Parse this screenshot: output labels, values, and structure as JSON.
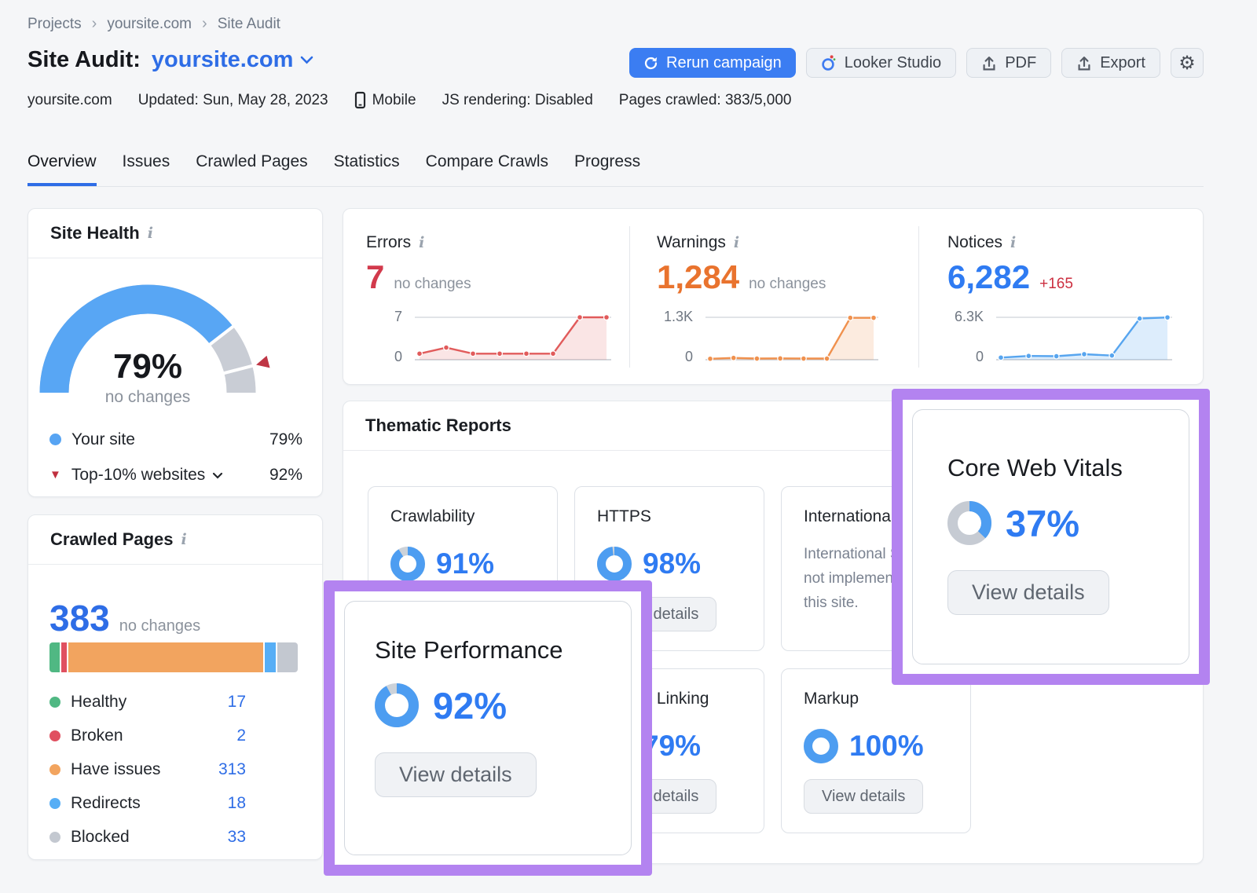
{
  "breadcrumb": {
    "items": [
      "Projects",
      "yoursite.com",
      "Site Audit"
    ]
  },
  "header": {
    "title_label": "Site Audit:",
    "project": "yoursite.com",
    "rerun_button": "Rerun campaign",
    "looker_button": "Looker Studio",
    "pdf_button": "PDF",
    "export_button": "Export",
    "meta": {
      "domain": "yoursite.com",
      "updated": "Updated: Sun, May 28, 2023",
      "device": "Mobile",
      "js_rendering": "JS rendering: Disabled",
      "pages_crawled": "Pages crawled: 383/5,000"
    }
  },
  "tabs": [
    {
      "label": "Overview",
      "active": true
    },
    {
      "label": "Issues"
    },
    {
      "label": "Crawled Pages"
    },
    {
      "label": "Statistics"
    },
    {
      "label": "Compare Crawls"
    },
    {
      "label": "Progress"
    }
  ],
  "site_health": {
    "title": "Site Health",
    "score": "79%",
    "delta": "no changes",
    "legend": [
      {
        "label": "Your site",
        "value": "79%"
      },
      {
        "label": "Top-10% websites",
        "value": "92%"
      }
    ]
  },
  "crawled_pages": {
    "title": "Crawled Pages",
    "total": "383",
    "delta": "no changes",
    "legend": [
      {
        "label": "Healthy",
        "value": "17"
      },
      {
        "label": "Broken",
        "value": "2"
      },
      {
        "label": "Have issues",
        "value": "313"
      },
      {
        "label": "Redirects",
        "value": "18"
      },
      {
        "label": "Blocked",
        "value": "33"
      }
    ]
  },
  "issues": {
    "sections": [
      {
        "title": "Errors",
        "value": "7",
        "delta": "no changes",
        "y_top": "7",
        "y_bottom": "0"
      },
      {
        "title": "Warnings",
        "value": "1,284",
        "delta": "no changes",
        "y_top": "1.3K",
        "y_bottom": "0"
      },
      {
        "title": "Notices",
        "value": "6,282",
        "delta": "+165",
        "y_top": "6.3K",
        "y_bottom": "0"
      }
    ]
  },
  "thematic": {
    "title": "Thematic Reports",
    "view_details": "View details",
    "cards": {
      "crawlability": {
        "title": "Crawlability",
        "percent": "91%"
      },
      "https": {
        "title": "HTTPS",
        "percent": "98%"
      },
      "international": {
        "title": "International SEO",
        "lines": [
          "International SEO is",
          "not implemented on",
          "this site."
        ]
      },
      "internal_linking": {
        "title": "Internal Linking",
        "percent": "79%"
      },
      "markup": {
        "title": "Markup",
        "percent": "100%"
      }
    }
  },
  "overlays": {
    "site_performance": {
      "title": "Site Performance",
      "percent": "92%",
      "button": "View details"
    },
    "core_web_vitals": {
      "title": "Core Web Vitals",
      "percent": "37%",
      "button": "View details"
    }
  },
  "chart_data": [
    {
      "id": "gauge_site_health",
      "type": "gauge",
      "value": 79,
      "benchmark": 92,
      "color": "#58a6f4",
      "rest_color": "#c9cdd5",
      "marker_color": "#bf3645"
    },
    {
      "id": "spark_errors",
      "type": "line",
      "ylim": [
        0,
        7
      ],
      "values": [
        1,
        2,
        1,
        1,
        1,
        1,
        7,
        7
      ],
      "color": "#e15b5b",
      "fill": "rgba(225,91,91,0.16)"
    },
    {
      "id": "spark_warnings",
      "type": "line",
      "ylim": [
        0,
        1300
      ],
      "values": [
        30,
        55,
        35,
        40,
        35,
        35,
        1284,
        1284
      ],
      "color": "#f0914e",
      "fill": "rgba(240,145,78,0.18)"
    },
    {
      "id": "spark_notices",
      "type": "line",
      "ylim": [
        0,
        6300
      ],
      "values": [
        320,
        560,
        520,
        820,
        620,
        6117,
        6282
      ],
      "color": "#57a5ef",
      "fill": "rgba(87,165,239,0.20)"
    },
    {
      "id": "bar_crawled",
      "type": "stacked_bar",
      "segments": [
        {
          "label": "Healthy",
          "value": 17,
          "color": "#50b883"
        },
        {
          "label": "Broken",
          "value": 2,
          "color": "#e05060"
        },
        {
          "label": "Have issues",
          "value": 313,
          "color": "#f2a45f"
        },
        {
          "label": "Redirects",
          "value": 18,
          "color": "#57aef5"
        },
        {
          "label": "Blocked",
          "value": 33,
          "color": "#c3c8d0"
        }
      ]
    },
    {
      "id": "donut_crawlability",
      "type": "donut",
      "value": 91,
      "color": "#4d9df1",
      "rest_color": "#ccd2d9"
    },
    {
      "id": "donut_https",
      "type": "donut",
      "value": 98,
      "color": "#4d9df1",
      "rest_color": "#ccd2d9"
    },
    {
      "id": "donut_internal_linking",
      "type": "donut",
      "value": 79,
      "color": "#4d9df1",
      "rest_color": "#ccd2d9"
    },
    {
      "id": "donut_markup",
      "type": "donut",
      "value": 100,
      "color": "#4d9df1",
      "rest_color": "#ccd2d9"
    },
    {
      "id": "donut_site_performance",
      "type": "donut",
      "value": 92,
      "color": "#4d9df1",
      "rest_color": "#ccd2d9"
    },
    {
      "id": "donut_core_web_vitals",
      "type": "donut",
      "value": 37,
      "color": "#4d9df1",
      "rest_color": "#c6cbd3"
    }
  ]
}
